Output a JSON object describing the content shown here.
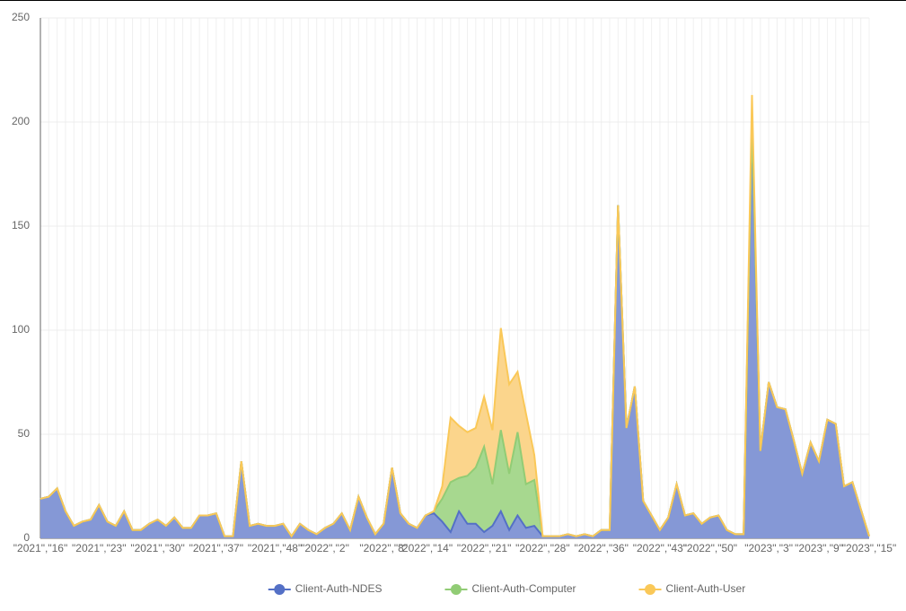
{
  "chart_data": {
    "type": "area",
    "stacked": true,
    "categories": [
      "\"2021\",\"16\"",
      null,
      null,
      null,
      null,
      null,
      null,
      "\"2021\",\"23\"",
      null,
      null,
      null,
      null,
      null,
      null,
      "\"2021\",\"30\"",
      null,
      null,
      null,
      null,
      null,
      null,
      "\"2021\",\"37\"",
      null,
      null,
      null,
      null,
      null,
      null,
      "\"2021\",\"48\"",
      null,
      null,
      null,
      null,
      null,
      "\"2022\",\"2\"",
      null,
      null,
      null,
      null,
      null,
      null,
      "\"2022\",\"8\"",
      null,
      null,
      null,
      null,
      "\"2022\",\"14\"",
      null,
      null,
      null,
      null,
      null,
      null,
      "\"2022\",\"21\"",
      null,
      null,
      null,
      null,
      null,
      null,
      "\"2022\",\"28\"",
      null,
      null,
      null,
      null,
      null,
      null,
      "\"2022\",\"36\"",
      null,
      null,
      null,
      null,
      null,
      null,
      "\"2022\",\"43\"",
      null,
      null,
      null,
      null,
      null,
      "\"2022\",\"50\"",
      null,
      null,
      null,
      null,
      null,
      null,
      "\"2023\",\"3\"",
      null,
      null,
      null,
      null,
      null,
      "\"2023\",\"9\"",
      null,
      null,
      null,
      null,
      null,
      "\"2023\",\"15\""
    ],
    "series": [
      {
        "name": "Client-Auth-NDES",
        "color": "#5470c6",
        "fill": "#8598d6",
        "values": [
          19,
          20,
          24,
          13,
          6,
          8,
          9,
          16,
          8,
          6,
          13,
          4,
          4,
          7,
          9,
          6,
          10,
          5,
          5,
          11,
          11,
          12,
          1,
          1,
          37,
          6,
          7,
          6,
          6,
          7,
          1,
          7,
          4,
          2,
          5,
          7,
          12,
          4,
          20,
          10,
          2,
          7,
          34,
          12,
          7,
          5,
          11,
          12,
          8,
          3,
          13,
          7,
          7,
          3,
          6,
          13,
          4,
          11,
          5,
          6,
          1,
          1,
          1,
          2,
          1,
          2,
          1,
          4,
          4,
          160,
          53,
          73,
          18,
          11,
          4,
          10,
          26,
          11,
          12,
          7,
          10,
          11,
          4,
          2,
          2,
          200,
          42,
          75,
          63,
          62,
          47,
          31,
          46,
          37,
          57,
          55,
          25,
          27,
          14,
          1
        ]
      },
      {
        "name": "Client-Auth-Computer",
        "color": "#91cc75",
        "fill": "#a7d88f",
        "values": [
          0,
          0,
          0,
          0,
          0,
          0,
          0,
          0,
          0,
          0,
          0,
          0,
          0,
          0,
          0,
          0,
          0,
          0,
          0,
          0,
          0,
          0,
          0,
          0,
          0,
          0,
          0,
          0,
          0,
          0,
          0,
          0,
          0,
          0,
          0,
          0,
          0,
          0,
          0,
          0,
          0,
          0,
          0,
          0,
          0,
          0,
          0,
          1,
          11,
          24,
          16,
          23,
          27,
          41,
          20,
          39,
          27,
          40,
          21,
          22,
          0,
          0,
          0,
          0,
          0,
          0,
          0,
          0,
          0,
          0,
          0,
          0,
          0,
          0,
          0,
          0,
          0,
          0,
          0,
          0,
          0,
          0,
          0,
          0,
          0,
          0,
          0,
          0,
          0,
          0,
          0,
          0,
          0,
          0,
          0,
          0,
          0,
          0,
          0,
          0
        ]
      },
      {
        "name": "Client-Auth-User",
        "color": "#fac858",
        "fill": "#fbd58c",
        "values": [
          0,
          0,
          0,
          0,
          0,
          0,
          0,
          0,
          0,
          0,
          0,
          0,
          0,
          0,
          0,
          0,
          0,
          0,
          0,
          0,
          0,
          0,
          0,
          0,
          0,
          0,
          0,
          0,
          0,
          0,
          0,
          0,
          0,
          0,
          0,
          0,
          0,
          0,
          0,
          0,
          0,
          0,
          0,
          0,
          0,
          0,
          0,
          0,
          6,
          31,
          25,
          21,
          19,
          24,
          26,
          49,
          43,
          29,
          34,
          12,
          0,
          0,
          0,
          0,
          0,
          0,
          0,
          0,
          0,
          0,
          0,
          0,
          0,
          0,
          0,
          0,
          0,
          0,
          0,
          0,
          0,
          0,
          0,
          0,
          0,
          13,
          0,
          0,
          0,
          0,
          0,
          0,
          0,
          0,
          0,
          0,
          0,
          0,
          0,
          0
        ]
      }
    ],
    "ylim": [
      0,
      250
    ],
    "yticks": [
      0,
      50,
      100,
      150,
      200,
      250
    ],
    "grid": true,
    "legend": "bottom"
  }
}
